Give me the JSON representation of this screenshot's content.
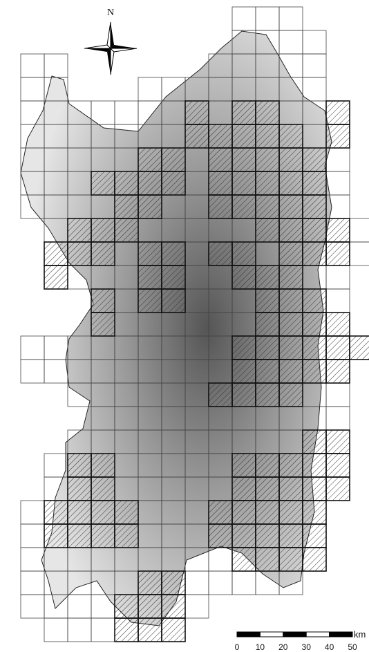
{
  "compass": {
    "label": "N"
  },
  "scale_bar": {
    "unit": "km",
    "ticks": [
      0,
      10,
      20,
      30,
      40,
      50
    ]
  }
}
